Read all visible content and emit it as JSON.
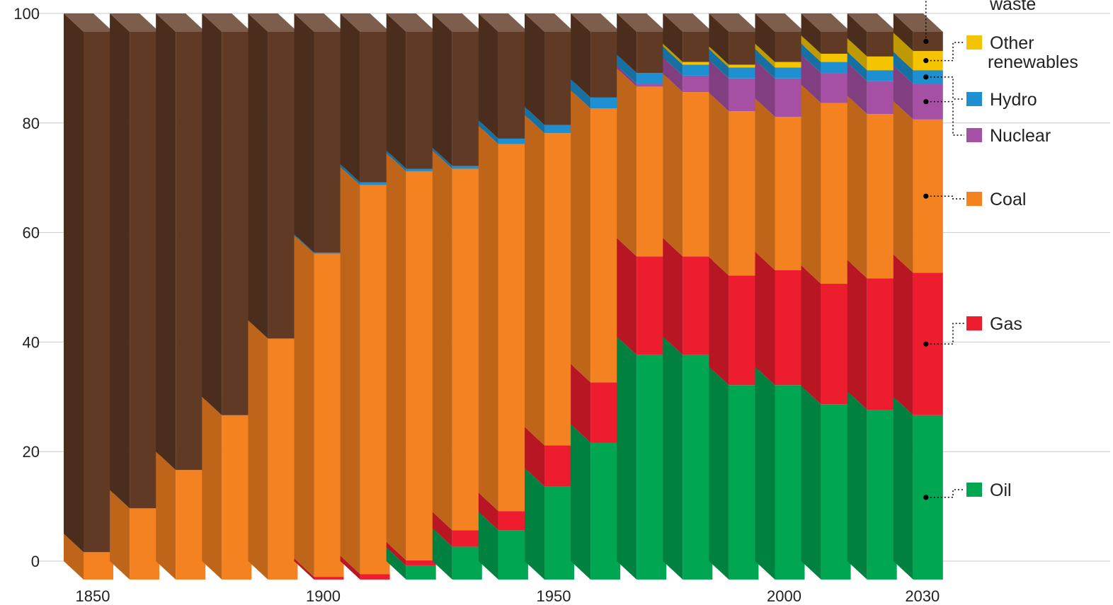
{
  "chart_data": {
    "type": "bar",
    "stacked": true,
    "style": "3d-stacked-columns",
    "x": [
      1850,
      1860,
      1870,
      1880,
      1890,
      1900,
      1910,
      1920,
      1930,
      1940,
      1950,
      1960,
      1970,
      1980,
      1990,
      2000,
      2010,
      2020,
      2030
    ],
    "x_tick_labels": [
      "1850",
      "1900",
      "1950",
      "2000",
      "2030"
    ],
    "ylim": [
      0,
      100
    ],
    "y_ticks": [
      0,
      20,
      40,
      60,
      80,
      100
    ],
    "grid": true,
    "legend_position": "right",
    "series": [
      {
        "name": "Oil",
        "color": "#00A651",
        "values": [
          0,
          0,
          0,
          0,
          0,
          0,
          0,
          2.5,
          6,
          9,
          17,
          25,
          41,
          41,
          35.5,
          35.5,
          32,
          31,
          30
        ]
      },
      {
        "name": "Gas",
        "color": "#ED1C2E",
        "values": [
          0,
          0,
          0,
          0,
          0,
          0.5,
          1,
          1,
          3,
          3.5,
          7.5,
          11,
          18,
          18,
          20,
          21,
          22,
          24,
          26
        ]
      },
      {
        "name": "Coal",
        "color": "#F58220",
        "values": [
          5,
          13,
          20,
          30,
          44,
          59,
          71,
          71,
          66,
          67,
          57,
          50,
          31,
          30,
          30,
          28,
          33,
          30,
          28
        ]
      },
      {
        "name": "Nuclear",
        "color": "#A650A4",
        "values": [
          0,
          0,
          0,
          0,
          0,
          0,
          0,
          0,
          0,
          0,
          0,
          0,
          0.5,
          3,
          6,
          7,
          5.5,
          6,
          6.5
        ]
      },
      {
        "name": "Hydro",
        "color": "#1E8FD0",
        "values": [
          0,
          0,
          0,
          0,
          0,
          0.2,
          0.5,
          0.5,
          0.5,
          1,
          1.5,
          2,
          2,
          2,
          2,
          2,
          2,
          2,
          2.5
        ]
      },
      {
        "name": "Other renewables",
        "color": "#F5C400",
        "values": [
          0,
          0,
          0,
          0,
          0,
          0,
          0,
          0,
          0,
          0,
          0,
          0,
          0,
          0.5,
          0.5,
          1,
          1.5,
          2.5,
          3.5
        ]
      },
      {
        "name": "Biomass and waste",
        "color": "#603A25",
        "values": [
          95,
          87,
          80,
          70,
          56,
          40.3,
          27.5,
          25,
          24.5,
          19.5,
          17,
          12,
          7.5,
          5.5,
          6,
          5.5,
          4,
          4.5,
          3.5
        ]
      }
    ],
    "legend_label_top": "waste",
    "legend_labels": [
      {
        "series": "Other renewables",
        "line1": "Other",
        "line2": "renewables"
      },
      {
        "series": "Hydro",
        "line1": "Hydro"
      },
      {
        "series": "Nuclear",
        "line1": "Nuclear"
      },
      {
        "series": "Coal",
        "line1": "Coal"
      },
      {
        "series": "Gas",
        "line1": "Gas"
      },
      {
        "series": "Oil",
        "line1": "Oil"
      }
    ]
  }
}
